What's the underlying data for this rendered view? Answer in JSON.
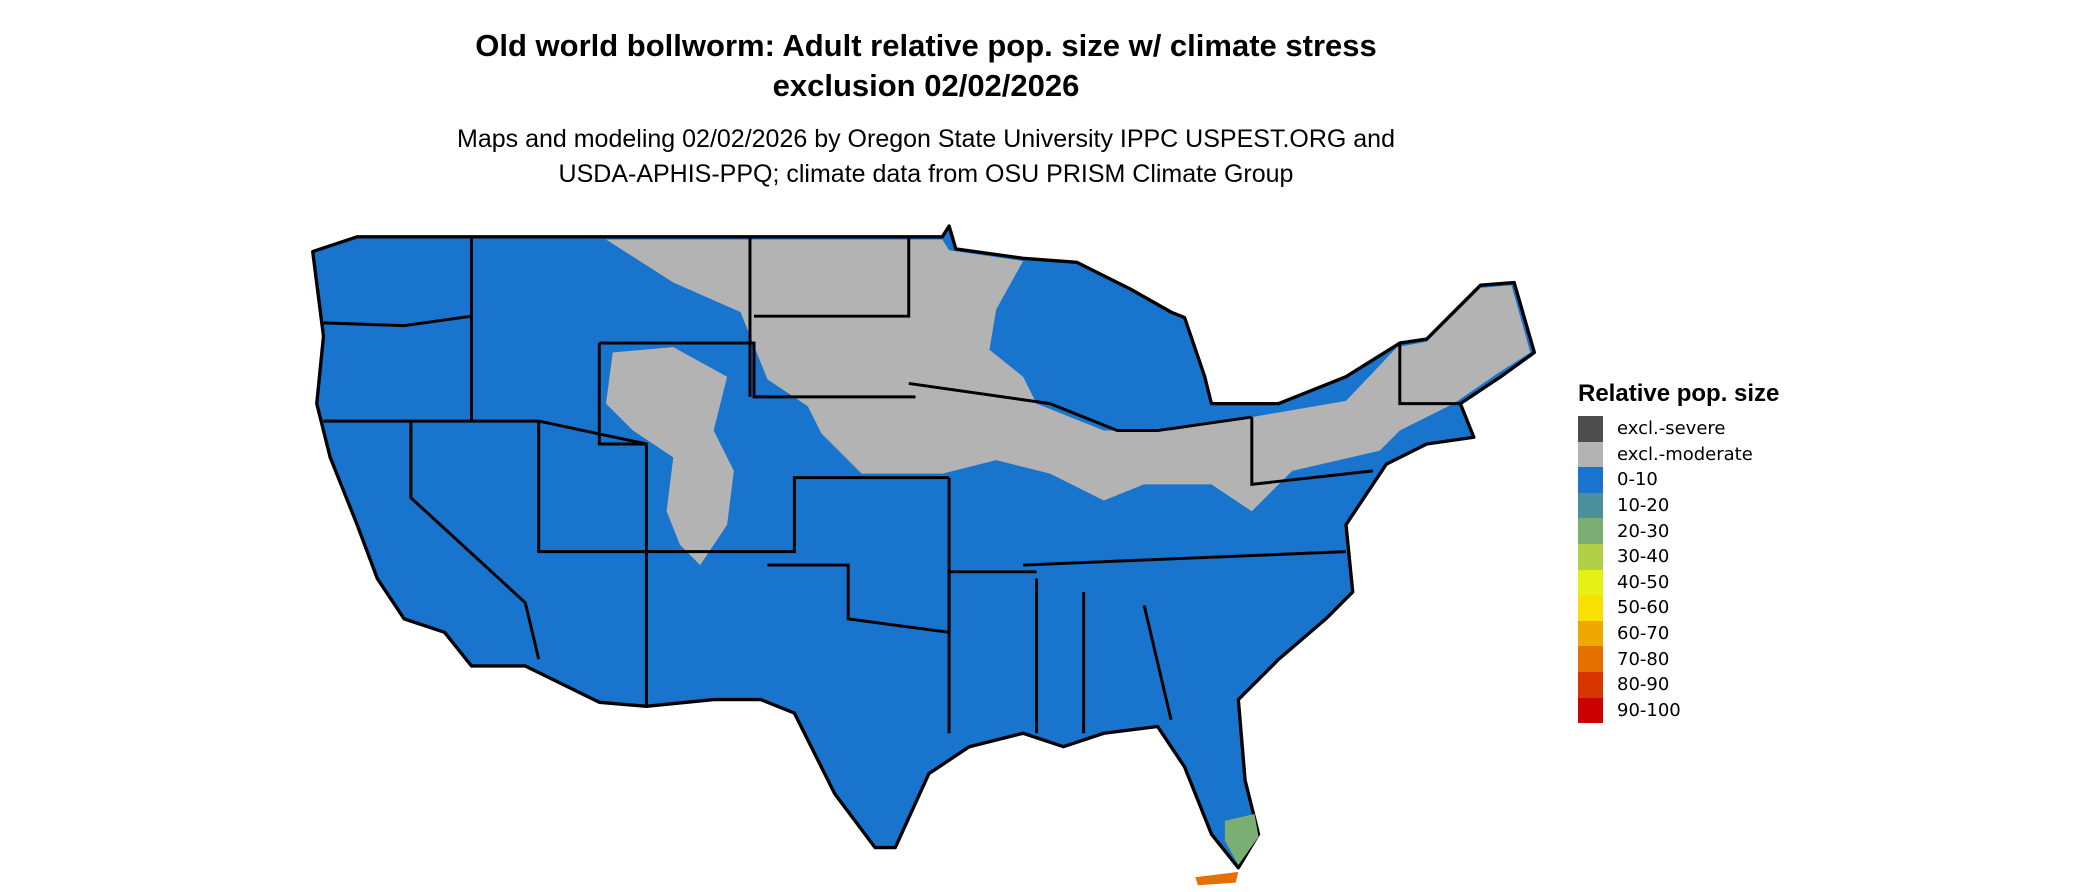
{
  "title_line1": "Old world bollworm: Adult relative pop. size w/ climate stress",
  "title_line2": "exclusion 02/02/2026",
  "subtitle_line1": "Maps and modeling 02/02/2026 by Oregon State University IPPC USPEST.ORG and",
  "subtitle_line2": "USDA-APHIS-PPQ; climate data from OSU PRISM Climate Group",
  "map": {
    "region": "Contiguous United States",
    "state_borders": true,
    "predominant_class": "0-10",
    "excluded_moderate_regions": "northern plains, upper Midwest, Great Lakes, Northeast, Rocky Mountain highlands",
    "higher_values_region": "southern Florida"
  },
  "legend": {
    "title": "Relative pop. size",
    "items": [
      {
        "label": "excl.-severe",
        "color": "#4d4d4d"
      },
      {
        "label": "excl.-moderate",
        "color": "#b3b3b3"
      },
      {
        "label": "0-10",
        "color": "#1874cd"
      },
      {
        "label": "10-20",
        "color": "#4a8f9a"
      },
      {
        "label": "20-30",
        "color": "#7aae73"
      },
      {
        "label": "30-40",
        "color": "#b2cf46"
      },
      {
        "label": "40-50",
        "color": "#e5f016"
      },
      {
        "label": "50-60",
        "color": "#f9e000"
      },
      {
        "label": "60-70",
        "color": "#f0a800"
      },
      {
        "label": "70-80",
        "color": "#e57000"
      },
      {
        "label": "80-90",
        "color": "#d83500"
      },
      {
        "label": "90-100",
        "color": "#cc0000"
      }
    ]
  }
}
